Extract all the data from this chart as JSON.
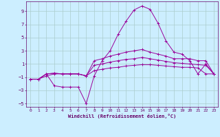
{
  "xlabel": "Windchill (Refroidissement éolien,°C)",
  "background_color": "#cceeff",
  "grid_color": "#aacccc",
  "line_color": "#990099",
  "xlim": [
    -0.5,
    23.5
  ],
  "ylim": [
    -5.5,
    10.5
  ],
  "yticks": [
    -5,
    -3,
    -1,
    1,
    3,
    5,
    7,
    9
  ],
  "xticks": [
    0,
    1,
    2,
    3,
    4,
    5,
    6,
    7,
    8,
    9,
    10,
    11,
    12,
    13,
    14,
    15,
    16,
    17,
    18,
    19,
    20,
    21,
    22,
    23
  ],
  "series": [
    {
      "x": [
        0,
        1,
        2,
        3,
        4,
        5,
        6,
        7,
        8,
        9,
        10,
        11,
        12,
        13,
        14,
        15,
        16,
        17,
        18,
        19,
        20,
        21,
        22,
        23
      ],
      "y": [
        -1.3,
        -1.3,
        -0.5,
        -2.3,
        -2.5,
        -2.5,
        -2.5,
        -5.0,
        -0.8,
        1.5,
        3.0,
        5.5,
        7.5,
        9.2,
        9.8,
        9.3,
        7.2,
        4.5,
        2.8,
        2.5,
        1.5,
        -0.5,
        1.0,
        -0.5
      ]
    },
    {
      "x": [
        0,
        1,
        2,
        3,
        4,
        5,
        6,
        7,
        8,
        9,
        10,
        11,
        12,
        13,
        14,
        15,
        16,
        17,
        18,
        19,
        20,
        21,
        22,
        23
      ],
      "y": [
        -1.3,
        -1.3,
        -0.5,
        -0.4,
        -0.5,
        -0.5,
        -0.5,
        -0.8,
        1.5,
        1.8,
        2.2,
        2.5,
        2.8,
        3.0,
        3.2,
        2.8,
        2.5,
        2.2,
        1.8,
        1.8,
        1.8,
        1.5,
        1.5,
        -0.5
      ]
    },
    {
      "x": [
        0,
        1,
        2,
        3,
        4,
        5,
        6,
        7,
        8,
        9,
        10,
        11,
        12,
        13,
        14,
        15,
        16,
        17,
        18,
        19,
        20,
        21,
        22,
        23
      ],
      "y": [
        -1.3,
        -1.3,
        -0.5,
        -0.4,
        -0.5,
        -0.5,
        -0.5,
        -0.8,
        0.8,
        1.0,
        1.3,
        1.5,
        1.7,
        1.8,
        2.0,
        1.8,
        1.6,
        1.4,
        1.2,
        1.1,
        1.0,
        0.9,
        0.8,
        -0.5
      ]
    },
    {
      "x": [
        0,
        1,
        2,
        3,
        4,
        5,
        6,
        7,
        8,
        9,
        10,
        11,
        12,
        13,
        14,
        15,
        16,
        17,
        18,
        19,
        20,
        21,
        22,
        23
      ],
      "y": [
        -1.3,
        -1.3,
        -0.8,
        -0.5,
        -0.5,
        -0.5,
        -0.5,
        -0.8,
        0.0,
        0.2,
        0.4,
        0.5,
        0.7,
        0.8,
        0.9,
        0.9,
        0.8,
        0.7,
        0.6,
        0.5,
        0.5,
        0.4,
        -0.5,
        -0.5
      ]
    }
  ]
}
